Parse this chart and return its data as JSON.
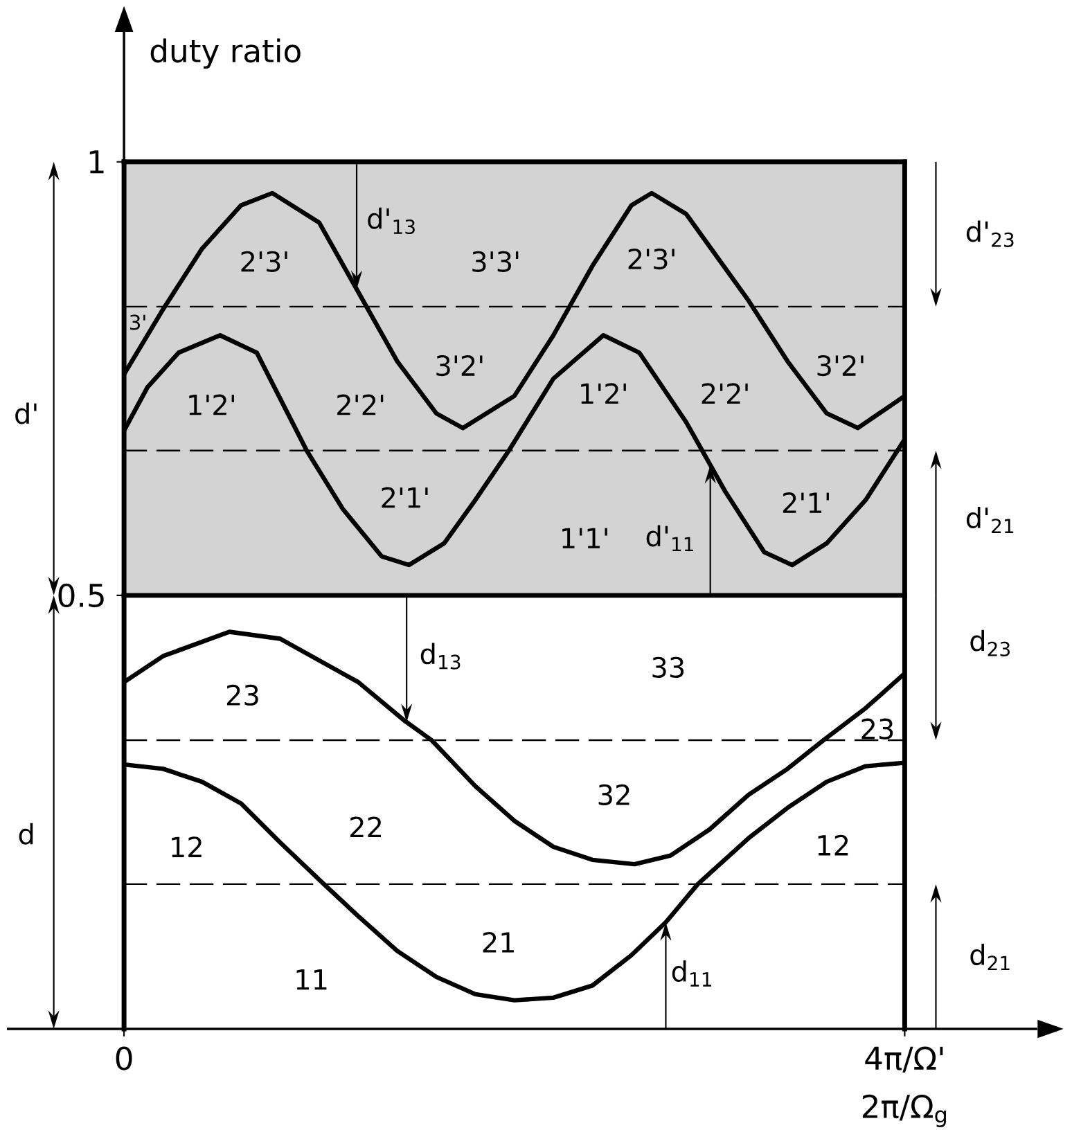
{
  "chart_data": {
    "type": "line",
    "ylabel": "duty ratio",
    "xlabel": "2π/Ω$_{g}$",
    "xlim": [
      -0.6,
      4.68
    ],
    "ylim": [
      0,
      1.15
    ],
    "xticks": [
      0,
      {
        "value": 4,
        "label": "4π/Ω'"
      }
    ],
    "yticks": [
      0.5,
      1
    ],
    "grid": false,
    "legend": false,
    "bands": [
      {
        "axis": "y",
        "from": 0.5,
        "to": 1,
        "color": "#d3d3d3"
      }
    ],
    "ref_lines": [
      {
        "axis": "x",
        "value": 0,
        "line_style": "solid"
      },
      {
        "axis": "x",
        "value": 4,
        "line_style": "solid"
      },
      {
        "axis": "y",
        "value": 1,
        "line_style": "solid"
      },
      {
        "axis": "y",
        "value": 0.5,
        "line_style": "solid"
      },
      {
        "axis": "y",
        "value": 0.833,
        "line_style": "dashed"
      },
      {
        "axis": "y",
        "value": 0.667,
        "line_style": "dashed"
      },
      {
        "axis": "y",
        "value": 0.333,
        "line_style": "dashed"
      },
      {
        "axis": "y",
        "value": 0.167,
        "line_style": "dashed"
      }
    ],
    "series": [
      {
        "color": "#000000",
        "x": [
          0,
          0.2,
          0.4,
          0.6,
          0.76,
          1.0,
          1.2,
          1.4,
          1.6,
          1.736,
          2.0,
          2.2,
          2.4,
          2.6,
          2.704,
          2.88,
          3.2,
          3.4,
          3.6,
          3.76,
          4.0
        ],
        "values": [
          0.755,
          0.83,
          0.9,
          0.95,
          0.964,
          0.93,
          0.85,
          0.77,
          0.71,
          0.693,
          0.73,
          0.8,
          0.88,
          0.95,
          0.964,
          0.94,
          0.84,
          0.77,
          0.71,
          0.693,
          0.73
        ]
      },
      {
        "color": "#000000",
        "x": [
          0,
          0.12,
          0.28,
          0.492,
          0.68,
          0.936,
          1.12,
          1.32,
          1.46,
          1.64,
          1.8,
          1.972,
          2.2,
          2.456,
          2.64,
          2.88,
          3.08,
          3.28,
          3.424,
          3.6,
          3.8,
          4.0
        ],
        "values": [
          0.69,
          0.74,
          0.78,
          0.8,
          0.78,
          0.667,
          0.6,
          0.545,
          0.535,
          0.56,
          0.61,
          0.667,
          0.75,
          0.8,
          0.78,
          0.7,
          0.62,
          0.55,
          0.535,
          0.56,
          0.61,
          0.68
        ]
      },
      {
        "color": "#000000",
        "x": [
          0,
          0.2,
          0.54,
          0.8,
          1.2,
          1.44,
          1.576,
          1.8,
          2.0,
          2.2,
          2.4,
          2.616,
          2.8,
          3.0,
          3.2,
          3.4,
          3.584,
          3.8,
          4.0
        ],
        "values": [
          0.4,
          0.43,
          0.458,
          0.45,
          0.4,
          0.355,
          0.333,
          0.28,
          0.24,
          0.21,
          0.195,
          0.19,
          0.2,
          0.23,
          0.27,
          0.3,
          0.333,
          0.37,
          0.41
        ]
      },
      {
        "color": "#000000",
        "x": [
          0,
          0.2,
          0.4,
          0.6,
          0.8,
          1.024,
          1.2,
          1.4,
          1.6,
          1.8,
          2.0,
          2.2,
          2.4,
          2.6,
          2.776,
          2.94,
          3.2,
          3.4,
          3.6,
          3.8,
          4.0
        ],
        "values": [
          0.305,
          0.3,
          0.285,
          0.26,
          0.215,
          0.167,
          0.13,
          0.09,
          0.06,
          0.04,
          0.033,
          0.036,
          0.05,
          0.085,
          0.123,
          0.167,
          0.22,
          0.255,
          0.285,
          0.303,
          0.307
        ]
      }
    ],
    "annotations": [
      "2'3'",
      "3'3'",
      "3'2'",
      "1'2'",
      "2'2'",
      "2'1'",
      "2'3'",
      "1'2'",
      "2'2'",
      "3'2'",
      "2'1'",
      "1'1'",
      "3'",
      "d'$_{13}$",
      "d'$_{11}$",
      "23",
      "12",
      "22",
      "11",
      "21",
      "33",
      "32",
      "12",
      "23",
      "d$_{13}$",
      "d$_{11}$",
      "d'$_{23}$",
      "d'$_{21}$",
      "d$_{23}$",
      "d$_{21}$",
      "d'",
      "d"
    ]
  }
}
